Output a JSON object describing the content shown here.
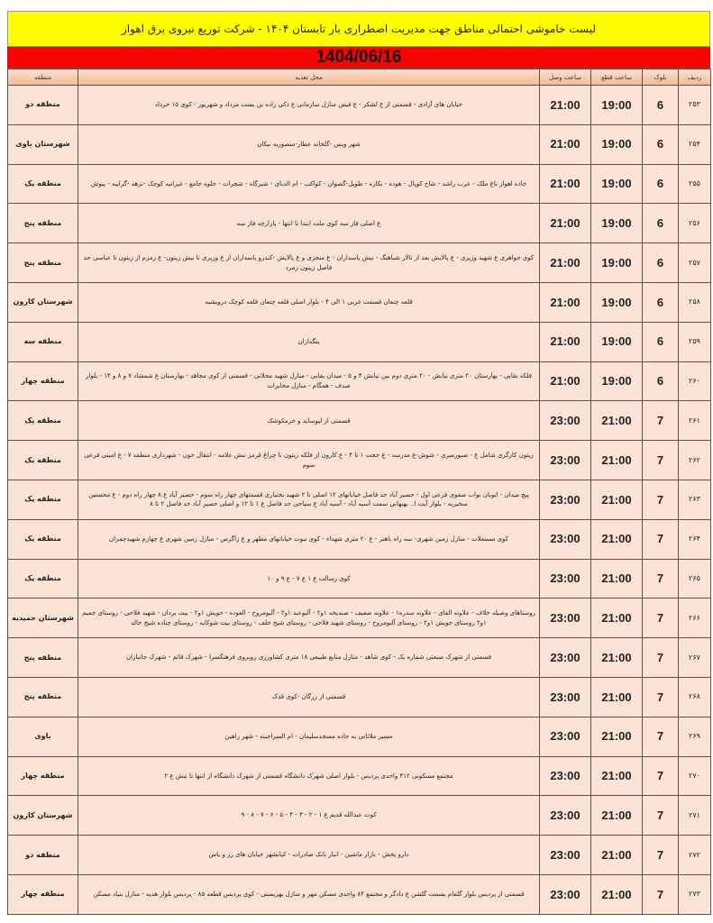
{
  "title": "لیست خاموشی احتمالی مناطق جهت مدیریت اضطراری بار تابستان ۱۴۰۴ - شرکت توزیع نیروی برق اهواز",
  "date": "1404/06/16",
  "headers": {
    "row": "ردیف",
    "block": "بلوک",
    "off": "ساعت قطع",
    "on": "ساعت وصل",
    "location": "محل تغذیه",
    "region": "منطقه"
  },
  "rows": [
    {
      "n": "۲۵۳",
      "block": "6",
      "off": "19:00",
      "on": "21:00",
      "loc": "خیابان های آزادی - قسمتی از ع لشکر - ع فیض منازل سازمانی ع ذکی زاده بن بست مرداد و شهریور - کوی ۱۵ خرداد",
      "region": "منطقه دو"
    },
    {
      "n": "۲۵۴",
      "block": "6",
      "off": "19:00",
      "on": "21:00",
      "loc": "شهر ویس -گلخانه عطار-منصوریه نیکان",
      "region": "شهرستان باوی"
    },
    {
      "n": "۲۵۵",
      "block": "6",
      "off": "19:00",
      "on": "21:00",
      "loc": "جاده اهواز باغ ملک - عرب راشد - شاخ کوپال - هوده - نکازه - طویل-گصوان - کواکب - ام الدبای - شیرگاه - شجرات - حلوه جامع - غیزانیه کوچک -نزهه -گرایبه - پیوش",
      "region": "منطقه یک"
    },
    {
      "n": "۲۵۶",
      "block": "6",
      "off": "19:00",
      "on": "21:00",
      "loc": "ع اصلی فاز سه کوی ملت ابتدا تا انتها - پازارچه فاز سه",
      "region": "منطقه پنج"
    },
    {
      "n": "۲۵۷",
      "block": "6",
      "off": "19:00",
      "on": "21:00",
      "loc": "کوی جواهری ع شهید وزیری - ع پالایش بعد از تالار شباهنگ - نبش پاسداران - ع منجزی و ع پالایش -کندرو پاسداران از ع وزیری تا نبش زیتون- ع زمزم از زیتون تا عباسی حد فاصل زیتون زمرد",
      "region": "منطقه پنج"
    },
    {
      "n": "۲۵۸",
      "block": "6",
      "off": "19:00",
      "on": "21:00",
      "loc": "قلعه چنعان قسمت غربی ۱ الی ۴ - بلوار اصلی قلعه چنعان قلعه کوچک درویشیه",
      "region": "شهرستان کارون"
    },
    {
      "n": "۲۵۹",
      "block": "6",
      "off": "19:00",
      "on": "21:00",
      "loc": "پنگداران",
      "region": "منطقه سه"
    },
    {
      "n": "۲۶۰",
      "block": "6",
      "off": "19:00",
      "on": "21:00",
      "loc": "فلکه بقایی - بهارستان ۲۰ متری نیایش - ۲۰ متری دوم بین نیایش ۴ و ۵ - میدان بقایی - منازل شهید محلاتی - قسمتی از کوی مجاهد - بهارستان ع شمشاد ۷ و ۸ و ۱۴ - بلوار صدف - همگام - منازل مخابرات",
      "region": "منطقه چهار"
    },
    {
      "n": "۲۶۱",
      "block": "7",
      "off": "21:00",
      "on": "23:00",
      "loc": "قسمتی از لیوساید و خرمکوشک",
      "region": "منطقه یک"
    },
    {
      "n": "۲۶۲",
      "block": "7",
      "off": "21:00",
      "on": "23:00",
      "loc": "زیتون کارگری شامل ع - صبورمیری - شوش-ع مدرسه - ع حجت ۱ تا ۴ - ع کارون از فلکه زیتون تا چراغ قرمز نبش علامه - انتقال خون - شهرداری منطقه ۷ - ع امینی فرعی سوم",
      "region": "منطقه یک"
    },
    {
      "n": "۲۶۳",
      "block": "7",
      "off": "21:00",
      "on": "23:00",
      "loc": "پیچ میدان - اتوبان نواب صفوی فرعی اول - حصیر آباد حد فاصل خیابانهای ۱۲ اصلی تا ۲ شهید بختیاری قسمتهای چهار راه سوم - حصیر آباد ع ۸ چهار راه دوم - ع محسنین سخیریه - بلوار آیت ا.. بهبهانی سمت آسیه آباد - آسیه آباد ع سیاحی حد فاصل ع ۱ تا ۱۲ و اصلی حصیر آباد حد فاصل ۲ تا ۸",
      "region": "منطقه یک"
    },
    {
      "n": "۲۶۴",
      "block": "7",
      "off": "21:00",
      "on": "23:00",
      "loc": "کوی مستغلات - منازل زمین شهری- سه راه باهنر - ع ۲۰ متری شهداء - کوی نبوت خیابانهای مطهر و ع زاگرس - منازل زمین شهری ع چهارم شهیدچمران",
      "region": "منطقه یک"
    },
    {
      "n": "۲۶۵",
      "block": "7",
      "off": "21:00",
      "on": "23:00",
      "loc": "کوی رسالت ع ۱ ع ۷ - ع ۹ و ۱۰",
      "region": "منطقه یک"
    },
    {
      "n": "۲۶۶",
      "block": "7",
      "off": "21:00",
      "on": "23:00",
      "loc": "روستاهای وصیله خلاف - علاونه الفای - علاونه سدره۱ - علاونه ضعیف - صندیخه ۱و۲ - آلبوعبد ۱و۲ - آلبومروح - العوده - حویش ۱و۲ - بیت بردان - شهید فلاحی - روستای جمیم ۱و۲ روستای حویش ۱و۲ - روستای آلبومروح - روستای شهید فلاحی - روستای شیخ خلف - روستای بیت شوکایه - روستای چناده شیخ خالد",
      "region": "شهرستان حمیدیه"
    },
    {
      "n": "۲۶۷",
      "block": "7",
      "off": "21:00",
      "on": "23:00",
      "loc": "قسمتی از شهرک صنعتی شماره یک - کوی شاهد - منازل منابع طبیعی ۱۸ متری کشاورزی روبروی فرهنگسرا - شهرک قائم - شهرک جانبازان",
      "region": "منطقه پنج"
    },
    {
      "n": "۲۶۸",
      "block": "7",
      "off": "21:00",
      "on": "23:00",
      "loc": "قسمتی از زرگان -کوی فدک",
      "region": "منطقه پنج"
    },
    {
      "n": "۲۶۹",
      "block": "7",
      "off": "21:00",
      "on": "23:00",
      "loc": "مسیر ملاثانی به جاده مسجدسلیمان - ام السراجینه - شهر راهین",
      "region": "باوی"
    },
    {
      "n": "۲۷۰",
      "block": "7",
      "off": "21:00",
      "on": "23:00",
      "loc": "مجتمع مسکونی ۳۱۲ واحدی پردیس - بلوار اصلی شهرک دانشگاه قسمتی از شهرک دانشگاه از انتها تا نبش ع ۲",
      "region": "منطقه چهار"
    },
    {
      "n": "۲۷۱",
      "block": "7",
      "off": "21:00",
      "on": "23:00",
      "loc": "کوت عبدالله قدیم ع ۱ - ۲ - ۳ - ۴ - ۵ - ۶ - ۷ - ۸ - ۹",
      "region": "شهرستان کارون"
    },
    {
      "n": "۲۷۲",
      "block": "7",
      "off": "21:00",
      "on": "23:00",
      "loc": "دارو پخش - بازار ماشین - انبار بانک صادرات - کیانشهر خیابان های رز و یاس",
      "region": "منطقه دو"
    },
    {
      "n": "۲۷۳",
      "block": "7",
      "off": "21:00",
      "on": "23:00",
      "loc": "قسمتی از پردیس بلوار گلفام بسمت گلشن ع دادگر و مجتمع ۸۴ واحدی مسکن مهر و منازل بهزیستی - کوی پردیس قطعه ۸۵ - پردیس بلوار هدیه - منازل بنیاد مسکن",
      "region": "منطقه چهار"
    }
  ]
}
